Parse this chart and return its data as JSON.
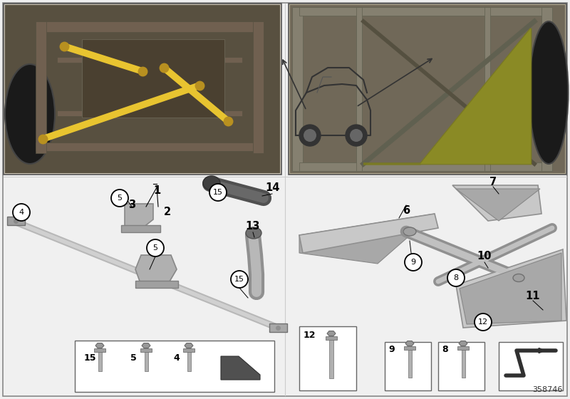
{
  "background_color": "#f0f0f0",
  "diagram_id": "358746",
  "yellow": "#e8c430",
  "olive": "#9b9b3a",
  "light_gray": "#c8c8c8",
  "mid_gray": "#a0a0a0",
  "dark_gray": "#707070",
  "near_black": "#404040",
  "white": "#ffffff",
  "black": "#000000"
}
